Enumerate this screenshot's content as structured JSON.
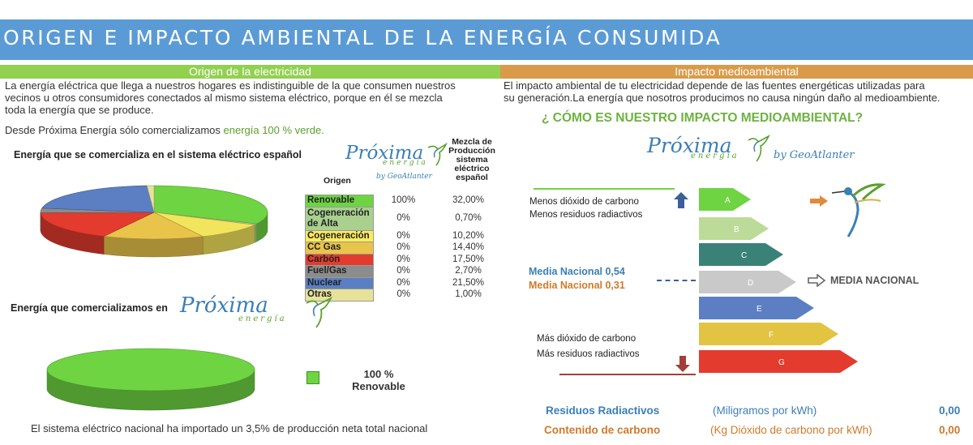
{
  "banner": {
    "title": "ORIGEN E IMPACTO AMBIENTAL DE LA ENERGÍA CONSUMIDA"
  },
  "left": {
    "section_title": "Origen de la electricidad",
    "paragraph_lines": [
      "La energía eléctrica que llega a nuestros hogares es indistinguible de la que consumen nuestros",
      "vecinos u otros consumidores conectados al mismo sistema eléctrico, porque en él se mezcla",
      "toda la energía que se produce."
    ],
    "offer_prefix": "Desde Próxima Energía sólo comercializamos ",
    "offer_highlight": "energía 100 % verde.",
    "national_chart_title": "Energía que se comercializa en el sistema eléctrico español",
    "ours_chart_title": "Energía que comercializamos en",
    "ours_legend_value": "100 %",
    "ours_legend_label": "Renovable",
    "footer": "El sistema eléctrico nacional ha importado un 3,5% de producción neta total nacional"
  },
  "logo": {
    "brand": "Próxima",
    "sub": "energía",
    "by": "by GeoAtlanter"
  },
  "table": {
    "col_origin": "Origen",
    "col_mix_lines": [
      "Mezcla de",
      "Producción",
      "sistema",
      "eléctrico",
      "español"
    ],
    "rows": [
      {
        "name": "Renovable",
        "ours": "100%",
        "national": "32,00%",
        "color": "#6ed442"
      },
      {
        "name_lines": [
          "Cogeneración",
          "de Alta"
        ],
        "ours": "0%",
        "national": "0,70%",
        "color": "#a9d08e"
      },
      {
        "name": "Cogeneración",
        "ours": "0%",
        "national": "10,20%",
        "color": "#ffeb5a"
      },
      {
        "name": "CC Gas",
        "ours": "0%",
        "national": "14,40%",
        "color": "#e8c44a"
      },
      {
        "name": "Carbón",
        "ours": "0%",
        "national": "17,50%",
        "color": "#e33b2e"
      },
      {
        "name": "Fuel/Gas",
        "ours": "0%",
        "national": "2,70%",
        "color": "#8c8c8c"
      },
      {
        "name": "Nuclear",
        "ours": "0%",
        "national": "21,50%",
        "color": "#5b7fc2"
      },
      {
        "name": "Otras",
        "ours": "0%",
        "national": "1,00%",
        "color": "#e6e29a"
      }
    ]
  },
  "chart_data": [
    {
      "type": "pie",
      "title": "Energía que se comercializa en el sistema eléctrico español",
      "categories": [
        "Renovable",
        "Cogeneración de Alta",
        "Cogeneración",
        "CC Gas",
        "Carbón",
        "Fuel/Gas",
        "Nuclear",
        "Otras"
      ],
      "values": [
        32.0,
        0.7,
        10.2,
        14.4,
        17.5,
        2.7,
        21.5,
        1.0
      ],
      "colors": [
        "#6ed442",
        "#a9d08e",
        "#f2e45c",
        "#e8c44a",
        "#e33b2e",
        "#8c8c8c",
        "#5b7fc2",
        "#e6e29a"
      ]
    },
    {
      "type": "pie",
      "title": "Energía que comercializamos en",
      "categories": [
        "Renovable"
      ],
      "values": [
        100
      ],
      "colors": [
        "#6ed442"
      ]
    }
  ],
  "right": {
    "section_title": "Impacto medioambiental",
    "paragraph_lines": [
      "El impacto ambiental de tu electricidad depende de las fuentes energéticas utilizadas para",
      "su generación.La energía que nosotros producimos no causa ningún daño al medioambiente."
    ],
    "impact_question": "¿ CÓMO ES NUESTRO IMPACTO MEDIOAMBIENTAL?",
    "less_co2": "Menos dióxido de carbono",
    "less_waste": "Menos residuos radiactivos",
    "more_co2": "Más dióxido de carbono",
    "more_waste": "Más residuos radiactivos",
    "media_nacional_blue": "Media Nacional 0,54",
    "media_nacional_orange": "Media Nacional 0,31",
    "media_nacional_label": "MEDIA NACIONAL",
    "ratings": [
      {
        "letter": "A",
        "color": "#6ed442"
      },
      {
        "letter": "B",
        "color": "#bcdb98"
      },
      {
        "letter": "C",
        "color": "#3a8277"
      },
      {
        "letter": "D",
        "color": "#c9c9c9"
      },
      {
        "letter": "E",
        "color": "#5b7fc2"
      },
      {
        "letter": "F",
        "color": "#e3c442"
      },
      {
        "letter": "G",
        "color": "#e33b2e"
      }
    ],
    "waste_label": "Residuos Radiactivos",
    "waste_unit": "(Miligramos por kWh)",
    "waste_value": "0,00",
    "carbon_label": "Contenido de carbono",
    "carbon_unit": "(Kg Dióxido de carbono por kWh)",
    "carbon_value": "0,00"
  }
}
